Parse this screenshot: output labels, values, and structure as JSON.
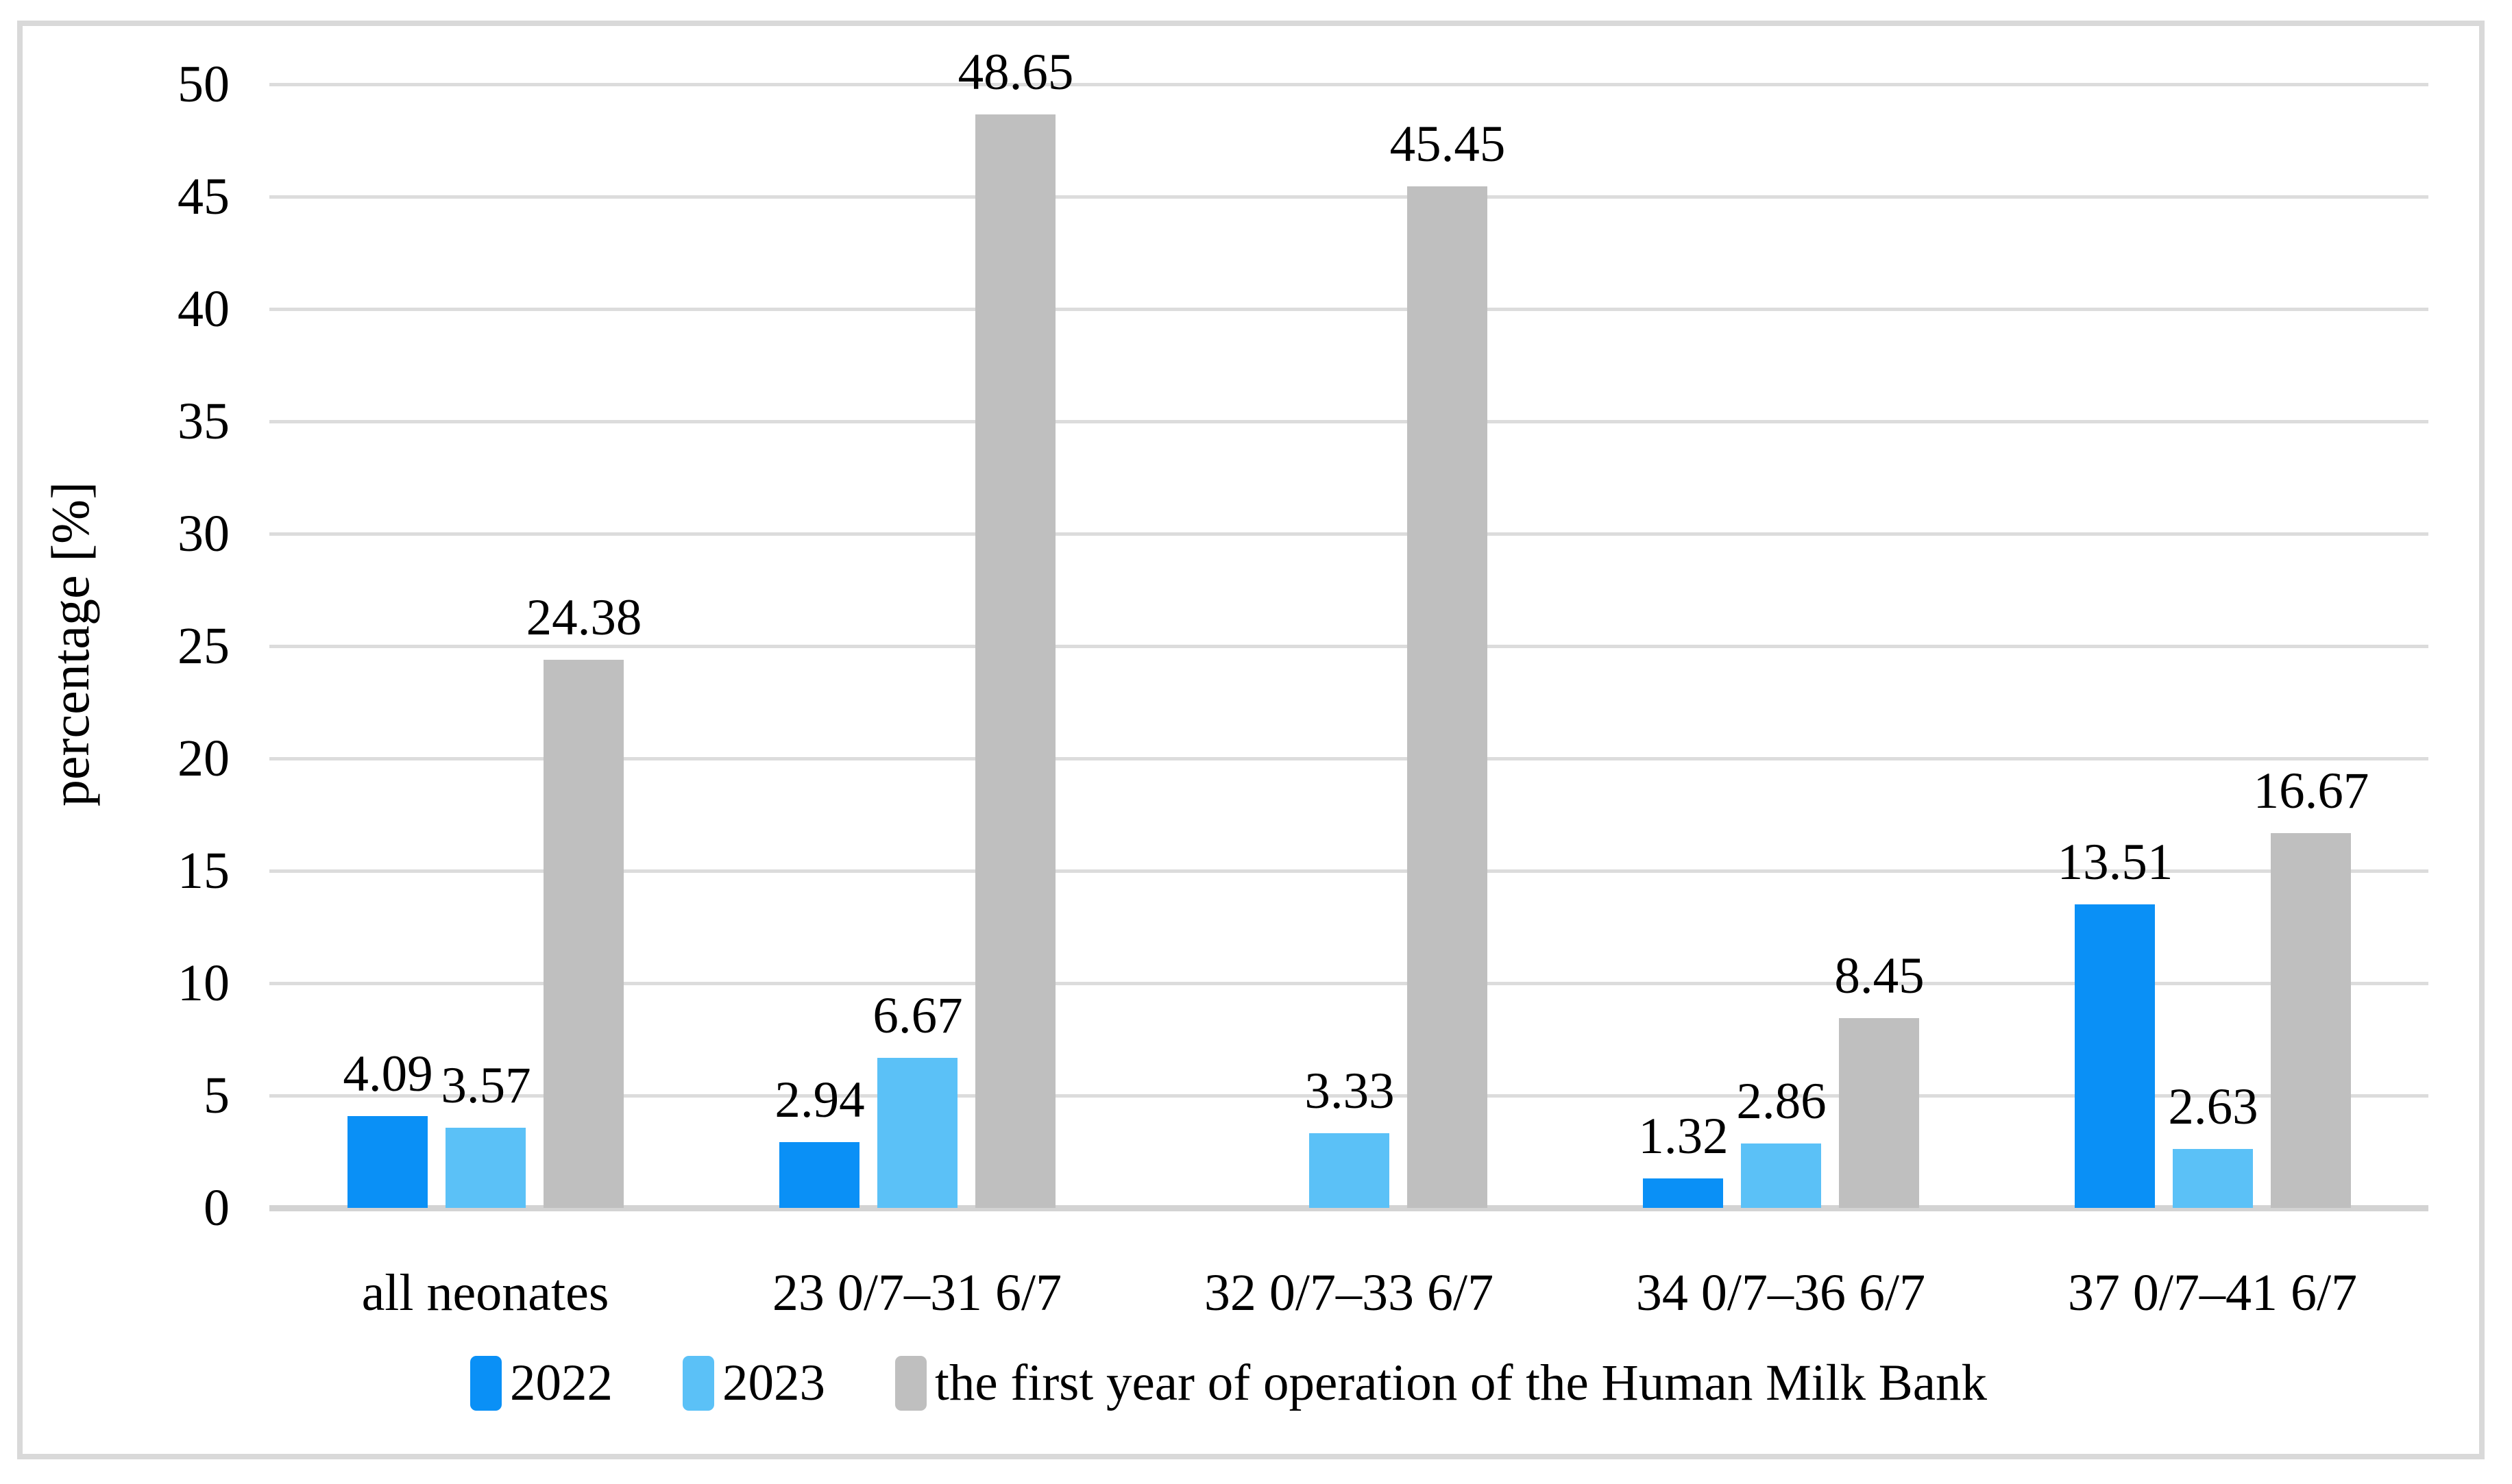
{
  "chart_data": {
    "type": "bar",
    "title": "",
    "xlabel": "",
    "ylabel": "percentage [%]",
    "ylim": [
      0,
      50
    ],
    "ytick_interval": 5,
    "yticks": [
      0,
      5,
      10,
      15,
      20,
      25,
      30,
      35,
      40,
      45,
      50
    ],
    "grid": "horizontal",
    "legend_position": "bottom",
    "data_labels": "outside-end",
    "categories": [
      "all neonates",
      "23 0/7–31 6/7",
      "32 0/7–33 6/7",
      "34 0/7–36 6/7",
      "37 0/7–41 6/7"
    ],
    "series": [
      {
        "name": "2022",
        "color": "#0a90f6",
        "values": [
          4.09,
          2.94,
          null,
          1.32,
          13.51
        ],
        "labels": [
          "4.09",
          "2.94",
          null,
          "1.32",
          "13.51"
        ]
      },
      {
        "name": "2023",
        "color": "#5bc1f7",
        "values": [
          3.57,
          6.67,
          3.33,
          2.86,
          2.63
        ],
        "labels": [
          "3.57",
          "6.67",
          "3.33",
          "2.86",
          "2.63"
        ]
      },
      {
        "name": "the first year of operation of the Human Milk Bank",
        "color": "#bfbfbf",
        "values": [
          24.38,
          48.65,
          45.45,
          8.45,
          16.67
        ],
        "labels": [
          "24.38",
          "48.65",
          "45.45",
          "8.45",
          "16.67"
        ]
      }
    ]
  },
  "colors": {
    "gridline": "#dcdcdc",
    "axis_line": "#d3d3d3",
    "frame_border": "#d9d9d9",
    "background": "#ffffff",
    "text": "#000000"
  }
}
